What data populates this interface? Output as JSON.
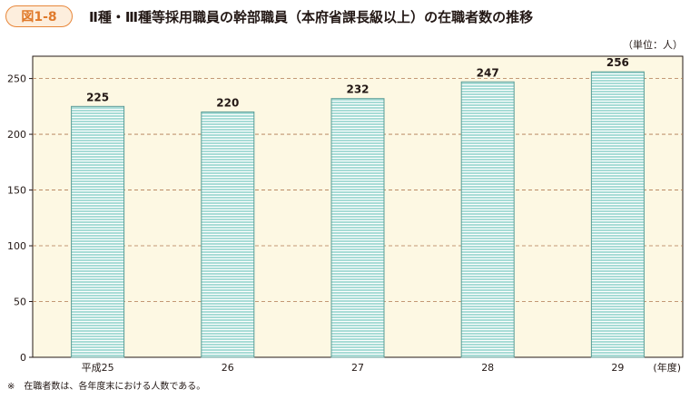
{
  "figure": {
    "label": "図1-8",
    "title": "Ⅱ種・Ⅲ種等採用職員の幹部職員（本府省課長級以上）の在職者数の推移",
    "unit": "（単位：人）",
    "note": "※　在職者数は、各年度末における人数である。"
  },
  "colors": {
    "badge_border": "#e8873a",
    "plot_bg": "#fdf8e3",
    "bar_fill": "#a8dcd6",
    "bar_stripe": "#ffffff",
    "bar_stroke": "#5a9c96",
    "grid": "#b07a52"
  },
  "chart_data": {
    "type": "bar",
    "categories": [
      "平成25",
      "26",
      "27",
      "28",
      "29"
    ],
    "values": [
      225,
      220,
      232,
      247,
      256
    ],
    "x_unit_label": "(年度)",
    "ylim": [
      0,
      270
    ],
    "yticks": [
      0,
      50,
      100,
      150,
      200,
      250
    ],
    "grid": true,
    "data_labels": true
  }
}
